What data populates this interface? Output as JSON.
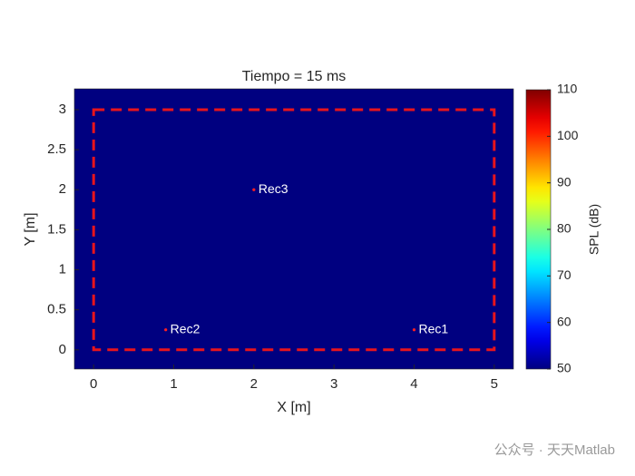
{
  "chart_data": {
    "type": "heatmap",
    "title": "Tiempo = 15 ms",
    "xlabel": "X [m]",
    "ylabel": "Y [m]",
    "xlim": [
      -0.24,
      5.24
    ],
    "ylim": [
      -0.24,
      3.26
    ],
    "xticks": [
      0,
      1,
      2,
      3,
      4,
      5
    ],
    "yticks": [
      0,
      0.5,
      1,
      1.5,
      2,
      2.5,
      3
    ],
    "field_value": 50,
    "colormap": "jet",
    "clim": [
      50,
      110
    ],
    "cticks": [
      50,
      60,
      70,
      80,
      90,
      100,
      110
    ],
    "colorbar_label": "SPL (dB)",
    "boundary": {
      "x": [
        0,
        5
      ],
      "y": [
        0,
        3
      ],
      "color": "#e8141c"
    },
    "points": [
      {
        "name": "Rec1",
        "x": 4,
        "y": 0.25
      },
      {
        "name": "Rec2",
        "x": 0.9,
        "y": 0.25
      },
      {
        "name": "Rec3",
        "x": 2,
        "y": 2
      }
    ],
    "point_color": "#ff2020",
    "watermark": "公众号 · 天天Matlab"
  }
}
